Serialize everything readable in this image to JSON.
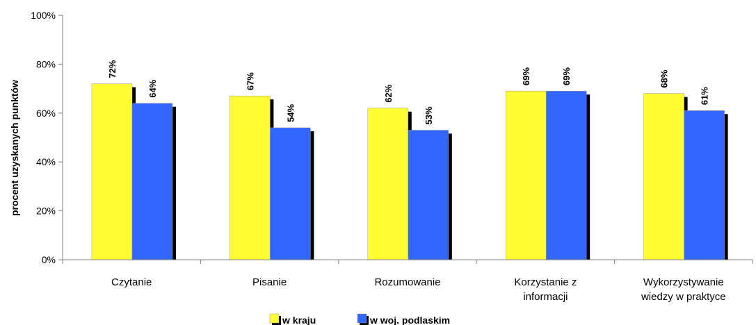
{
  "chart_data": {
    "type": "bar",
    "ylabel": "procent uzyskanych  punktów",
    "y_ticks": [
      "0%",
      "20%",
      "40%",
      "60%",
      "80%",
      "100%"
    ],
    "ylim": [
      0,
      100
    ],
    "grid": false,
    "legend_position": "bottom",
    "categories": [
      [
        "Czytanie"
      ],
      [
        "Pisanie"
      ],
      [
        "Rozumowanie"
      ],
      [
        "Korzystanie z",
        "informacji"
      ],
      [
        "Wykorzystywanie",
        "wiedzy w praktyce"
      ]
    ],
    "series": [
      {
        "name": "w kraju",
        "color": "#ffff33",
        "values": [
          72,
          67,
          62,
          69,
          68
        ],
        "labels": [
          "72%",
          "67%",
          "62%",
          "69%",
          "68%"
        ]
      },
      {
        "name": "w woj. podlaskim",
        "color": "#3366ff",
        "values": [
          64,
          54,
          53,
          69,
          61
        ],
        "labels": [
          "64%",
          "54%",
          "53%",
          "69%",
          "61%"
        ]
      }
    ]
  }
}
